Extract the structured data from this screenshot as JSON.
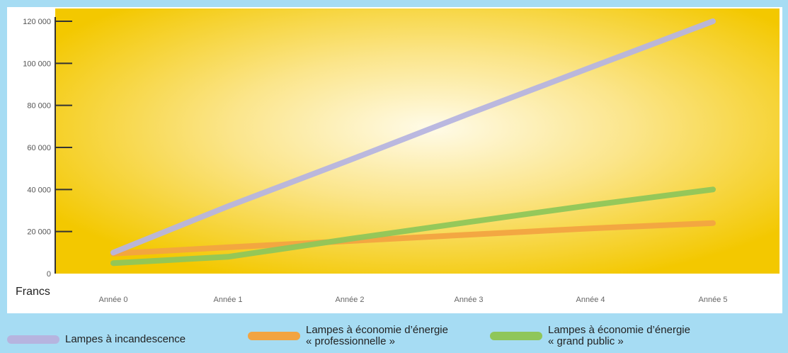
{
  "chart_data": {
    "type": "line",
    "categories": [
      "Année 0",
      "Année 1",
      "Année 2",
      "Année 3",
      "Année 4",
      "Année 5"
    ],
    "ylabel": "Francs",
    "ylim": [
      0,
      120000
    ],
    "yticks": [
      0,
      20000,
      40000,
      60000,
      80000,
      100000,
      120000
    ],
    "ytick_labels": [
      "0",
      "20 000",
      "40 000",
      "60 000",
      "80 000",
      "100 000",
      "120 000"
    ],
    "series": [
      {
        "name_lines": [
          "Lampes à incandescence"
        ],
        "values": [
          10000,
          32000,
          54000,
          76000,
          98000,
          120000
        ],
        "color": "#b6b4df"
      },
      {
        "name_lines": [
          "Lampes à économie d’énergie",
          "« professionnelle »"
        ],
        "values": [
          9500,
          12500,
          15500,
          18500,
          21500,
          24000
        ],
        "color": "#f2a441"
      },
      {
        "name_lines": [
          "Lampes à économie d’énergie",
          "« grand public »"
        ],
        "values": [
          5000,
          8000,
          16500,
          24500,
          32500,
          40000
        ],
        "color": "#8fc65a"
      }
    ],
    "grid": false,
    "legend_position": "bottom"
  }
}
